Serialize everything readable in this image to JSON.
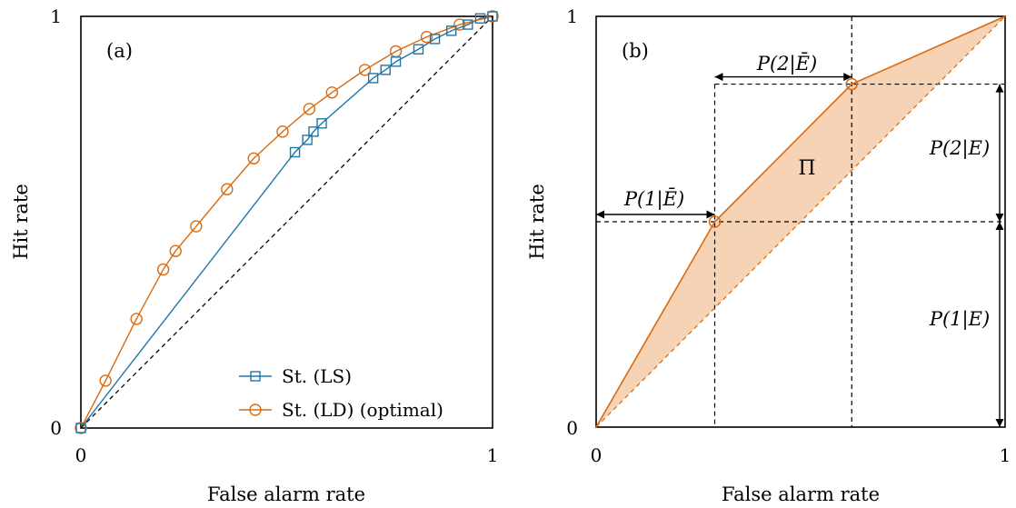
{
  "colors": {
    "ls": "#1f77a8",
    "ld": "#d96a10",
    "fill": "#f5cba7",
    "axis": "#000000"
  },
  "chart_data": [
    {
      "type": "line",
      "panel_label": "(a)",
      "xlabel": "False alarm rate",
      "ylabel": "Hit rate",
      "xlim": [
        0,
        1
      ],
      "ylim": [
        0,
        1
      ],
      "xticks": [
        "0",
        "1"
      ],
      "yticks": [
        "0",
        "1"
      ],
      "legend_position": "bottom-right",
      "series": [
        {
          "name": "St. (LS)",
          "marker": "square",
          "color": "#1f77a8",
          "x": [
            0,
            0.52,
            0.55,
            0.565,
            0.585,
            0.71,
            0.74,
            0.765,
            0.82,
            0.86,
            0.9,
            0.94,
            0.97,
            1
          ],
          "y": [
            0,
            0.67,
            0.7,
            0.72,
            0.74,
            0.85,
            0.87,
            0.89,
            0.92,
            0.945,
            0.965,
            0.98,
            0.995,
            1
          ]
        },
        {
          "name": "St. (LD) (optimal)",
          "marker": "circle",
          "color": "#d96a10",
          "x": [
            0,
            0.06,
            0.135,
            0.2,
            0.23,
            0.28,
            0.355,
            0.42,
            0.49,
            0.555,
            0.61,
            0.69,
            0.765,
            0.84,
            0.92,
            1
          ],
          "y": [
            0,
            0.115,
            0.265,
            0.385,
            0.43,
            0.49,
            0.58,
            0.655,
            0.72,
            0.775,
            0.815,
            0.87,
            0.915,
            0.95,
            0.98,
            1
          ]
        },
        {
          "name": "",
          "style": "dashed",
          "color": "#000000",
          "x": [
            0,
            1
          ],
          "y": [
            0,
            1
          ]
        }
      ]
    },
    {
      "type": "line",
      "panel_label": "(b)",
      "xlabel": "False alarm rate",
      "ylabel": "Hit rate",
      "xlim": [
        0,
        1
      ],
      "ylim": [
        0,
        1
      ],
      "xticks": [
        "0",
        "1"
      ],
      "yticks": [
        "0",
        "1"
      ],
      "series": [
        {
          "name": "",
          "marker": "circle",
          "color": "#d96a10",
          "x": [
            0,
            0.29,
            0.625,
            1
          ],
          "y": [
            0,
            0.5,
            0.835,
            1
          ]
        },
        {
          "name": "",
          "style": "dashed",
          "color": "#d96a10",
          "x": [
            0,
            1
          ],
          "y": [
            0,
            1
          ]
        }
      ],
      "shaded_region": {
        "label": "Π",
        "vertices_x": [
          0,
          0.29,
          0.625,
          1
        ],
        "vertices_y": [
          0,
          0.5,
          0.835,
          1
        ]
      },
      "annotations": {
        "p1_ebar": "P(1|Ē)",
        "p2_ebar": "P(2|Ē)",
        "p2_e": "P(2|E)",
        "p1_e": "P(1|E)"
      }
    }
  ]
}
